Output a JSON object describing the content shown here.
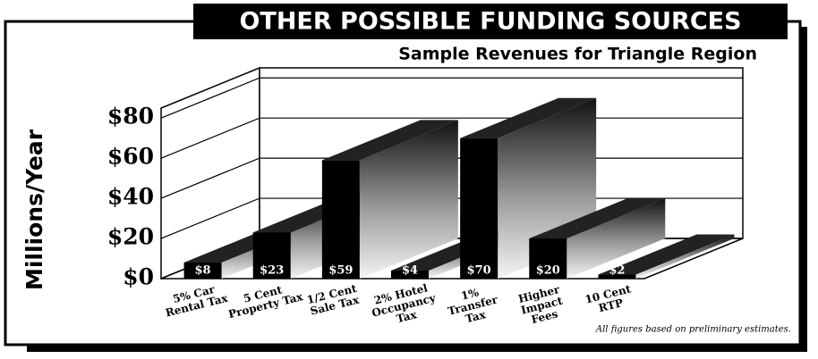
{
  "chart_data": {
    "type": "bar3d",
    "title": "OTHER POSSIBLE FUNDING SOURCES",
    "subtitle": "Sample Revenues for Triangle Region",
    "y_label": "Millions/Year",
    "note": "All figures based on preliminary estimates.",
    "categories": [
      [
        "5% Car",
        "Rental Tax"
      ],
      [
        "5 Cent",
        "Property Tax"
      ],
      [
        "1/2 Cent",
        "Sale Tax"
      ],
      [
        "2% Hotel",
        "Occupancy",
        "Tax"
      ],
      [
        "1%",
        "Transfer",
        "Tax"
      ],
      [
        "Higher",
        "Impact",
        "Fees"
      ],
      [
        "10 Cent",
        "RTP"
      ]
    ],
    "values": [
      8,
      23,
      59,
      4,
      70,
      20,
      2
    ],
    "value_labels": [
      "$8",
      "$23",
      "$59",
      "$4",
      "$70",
      "$20",
      "$2"
    ],
    "color": "#000000",
    "ylim": [
      0,
      85
    ],
    "yticks": [
      {
        "value": 0,
        "label": "$0"
      },
      {
        "value": 20,
        "label": "$20"
      },
      {
        "value": 40,
        "label": "$40"
      },
      {
        "value": 60,
        "label": "$60"
      },
      {
        "value": 80,
        "label": "$80"
      }
    ],
    "grid": true
  }
}
